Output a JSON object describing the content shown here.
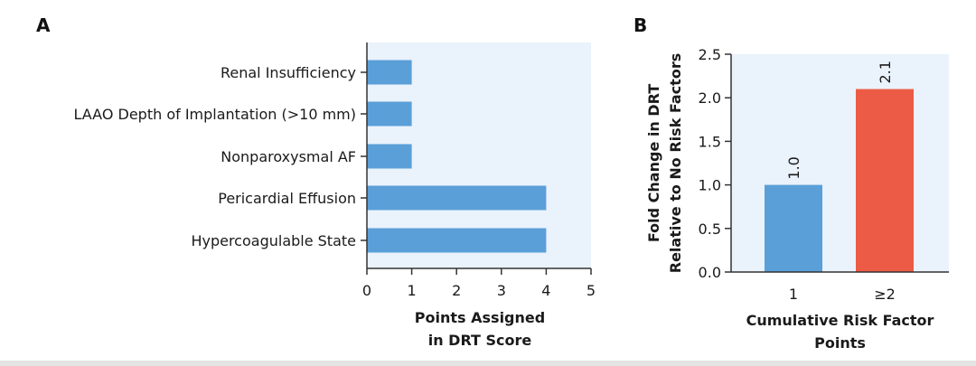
{
  "panels": {
    "a_label": "A",
    "b_label": "B"
  },
  "colors": {
    "plot_background": "#eaf2fb",
    "bar_blue": "#5a9fd8",
    "bar_red": "#ec5b45",
    "axis": "#333333"
  },
  "chart_data": [
    {
      "type": "bar",
      "orientation": "horizontal",
      "panel": "A",
      "categories": [
        "Renal Insufficiency",
        "LAAO Depth of Implantation (>10 mm)",
        "Nonparoxysmal AF",
        "Pericardial Effusion",
        "Hypercoagulable State"
      ],
      "values": [
        1,
        1,
        1,
        4,
        4
      ],
      "xlabel_lines": [
        "Points Assigned",
        "in DRT Score"
      ],
      "xlim": [
        0,
        5
      ],
      "xticks": [
        "0",
        "1",
        "2",
        "3",
        "4",
        "5"
      ],
      "grid": false
    },
    {
      "type": "bar",
      "orientation": "vertical",
      "panel": "B",
      "categories": [
        "1",
        "≥2"
      ],
      "values": [
        1.0,
        2.1
      ],
      "value_labels": [
        "1.0",
        "2.1"
      ],
      "bar_colors": [
        "#5a9fd8",
        "#ec5b45"
      ],
      "ylabel_lines": [
        "Fold Change in DRT",
        "Relative to No Risk Factors"
      ],
      "xlabel_lines": [
        "Cumulative Risk Factor",
        "Points"
      ],
      "ylim": [
        0,
        2.5
      ],
      "yticks": [
        "0.0",
        "0.5",
        "1.0",
        "1.5",
        "2.0",
        "2.5"
      ],
      "grid": false
    }
  ]
}
